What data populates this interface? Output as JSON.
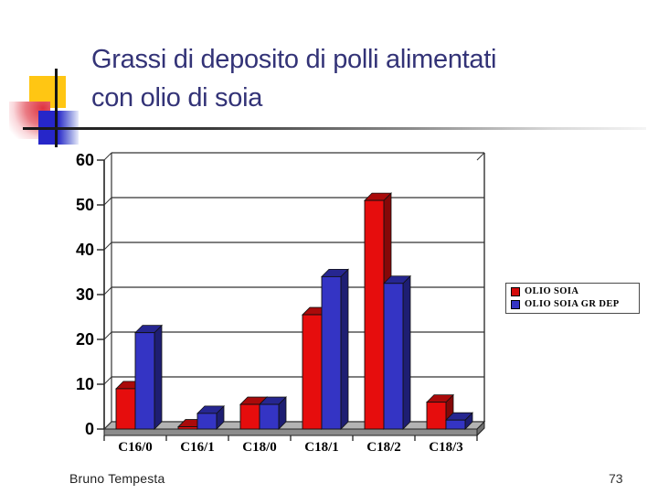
{
  "slide": {
    "title_line1": "Grassi di deposito di polli alimentati",
    "title_line2": "con olio di soia",
    "title_color": "#333377",
    "footer_author": "Bruno Tempesta",
    "slide_number": "73"
  },
  "decor": {
    "yellow_square": "#ffc613",
    "red_square": "#df3340",
    "blue_square": "#2626c9",
    "line_color": "#141414"
  },
  "legend": {
    "items": [
      {
        "label": "OLIO SOIA",
        "color": "#d40b0b"
      },
      {
        "label": "OLIO SOIA GR DEP",
        "color": "#3434c4"
      }
    ]
  },
  "chart_data": {
    "type": "bar",
    "style": "3d-column",
    "title": "",
    "xlabel": "",
    "ylabel": "",
    "categories": [
      "C16/0",
      "C16/1",
      "C18/0",
      "C18/1",
      "C18/2",
      "C18/3"
    ],
    "series": [
      {
        "name": "OLIO SOIA",
        "color": "#e60d0d",
        "values": [
          9,
          0.5,
          5.5,
          25.5,
          51,
          6
        ]
      },
      {
        "name": "OLIO SOIA GR DEP",
        "color": "#3434c4",
        "values": [
          21.5,
          3.5,
          5.5,
          34,
          32.5,
          2
        ]
      }
    ],
    "ylim": [
      0,
      60
    ],
    "yticks": [
      0,
      10,
      20,
      30,
      40,
      50,
      60
    ],
    "grid": true,
    "legend_position": "right"
  }
}
